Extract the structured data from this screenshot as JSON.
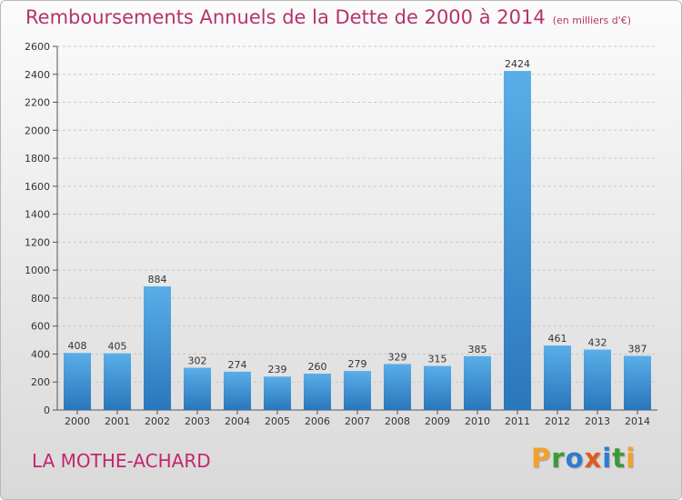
{
  "title": "Remboursements Annuels de la Dette de 2000 à 2014",
  "title_unit": "(en milliers d'€)",
  "commune": "LA MOTHE-ACHARD",
  "logo": {
    "text": "Proxiti",
    "letters": [
      {
        "char": "P",
        "color": "#f2a22a"
      },
      {
        "char": "r",
        "color": "#3a9a3a"
      },
      {
        "char": "o",
        "color": "#2f7bd0"
      },
      {
        "char": "x",
        "color": "#e05a1e"
      },
      {
        "char": "i",
        "color": "#2f7bd0"
      },
      {
        "char": "t",
        "color": "#3a9a3a"
      },
      {
        "char": "i",
        "color": "#f2a22a"
      }
    ]
  },
  "colors": {
    "bar_top": "#5aaee8",
    "bar_bottom": "#2a76bb",
    "title": "#b5336b",
    "commune": "#c2266f"
  },
  "chart_data": {
    "type": "bar",
    "categories": [
      "2000",
      "2001",
      "2002",
      "2003",
      "2004",
      "2005",
      "2006",
      "2007",
      "2008",
      "2009",
      "2010",
      "2011",
      "2012",
      "2013",
      "2014"
    ],
    "values": [
      408,
      405,
      884,
      302,
      274,
      239,
      260,
      279,
      329,
      315,
      385,
      2424,
      461,
      432,
      387
    ],
    "ylim": [
      0,
      2600
    ],
    "yticks": [
      0,
      200,
      400,
      600,
      800,
      1000,
      1200,
      1400,
      1600,
      1800,
      2000,
      2200,
      2400,
      2600
    ],
    "grid": true,
    "data_labels": true
  }
}
